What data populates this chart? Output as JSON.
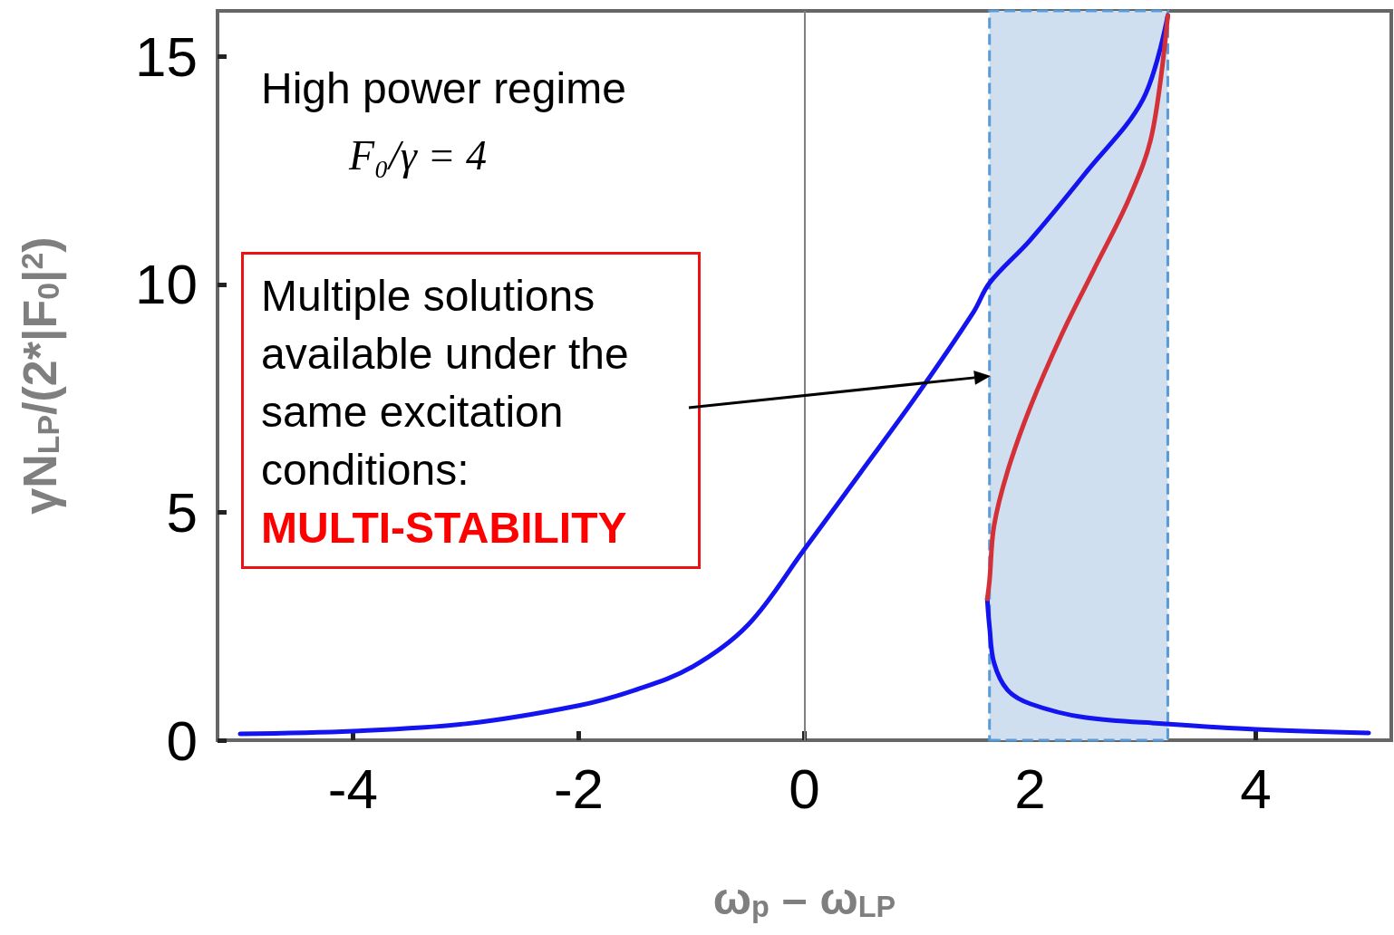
{
  "chart_data": {
    "type": "line",
    "xlabel": "ω$_{p}$ – ω$_{LP}$",
    "ylabel": "γN$_{LP}$/(2*|F$_{0}$|$^{2}$)",
    "xlim": [
      -5.2,
      5.2
    ],
    "xticks": [
      -4,
      -2,
      0,
      2,
      4
    ],
    "ylim": [
      0,
      16
    ],
    "yticks": [
      0,
      5,
      10,
      15
    ],
    "series": [
      {
        "color": "#1414f0",
        "x": [
          -5,
          -4,
          -3,
          -2,
          -1.5,
          -1,
          -0.5,
          0,
          0.5,
          1,
          1.5,
          1.64,
          2,
          2.5,
          3,
          3.22
        ],
        "values": [
          0.14,
          0.2,
          0.36,
          0.76,
          1.1,
          1.6,
          2.53,
          4.19,
          5.88,
          7.58,
          9.4,
          10.03,
          10.97,
          12.47,
          14.06,
          15.9
        ]
      },
      {
        "color": "#1414f0",
        "x": [
          1.62,
          1.64,
          1.68,
          1.8,
          2,
          2.48,
          3.2,
          4,
          5
        ],
        "values": [
          3.1,
          2.49,
          1.7,
          1.1,
          0.8,
          0.5,
          0.36,
          0.24,
          0.16
        ]
      },
      {
        "color": "#d43038",
        "x": [
          1.62,
          1.64,
          1.68,
          1.8,
          2,
          2.28,
          2.56,
          2.88,
          3.08,
          3.22
        ],
        "values": [
          3.1,
          3.5,
          4.7,
          5.9,
          7.3,
          8.9,
          10.3,
          11.9,
          13.3,
          15.9
        ]
      }
    ],
    "ref_lines": [
      {
        "axis": "x",
        "value": 0,
        "color": "#808080"
      }
    ],
    "bands": [
      {
        "axis": "x",
        "from": 1.64,
        "to": 3.22,
        "color": "#cfdff0"
      }
    ],
    "annotations": [
      "High power regime",
      "F₀/γ = 4",
      "Multiple solutions available under the same excitation conditions:",
      "MULTI-STABILITY"
    ],
    "grid": false,
    "marker": "none",
    "line_style": "solid"
  }
}
